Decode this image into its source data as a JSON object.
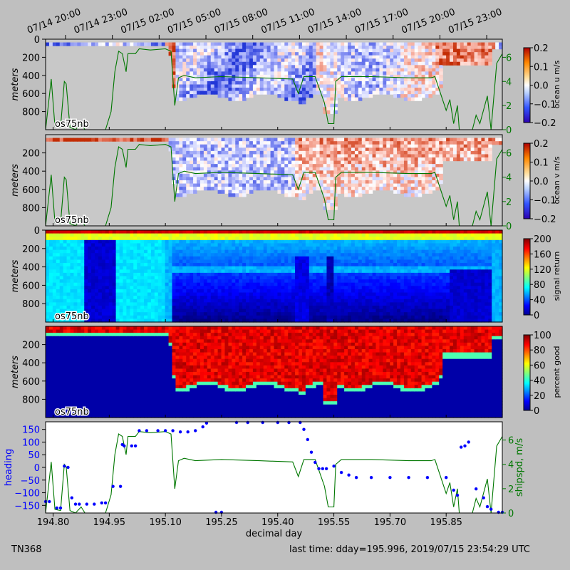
{
  "time_ticks": [
    "07/14 20:00",
    "07/14 23:00",
    "07/15 02:00",
    "07/15 05:00",
    "07/15 08:00",
    "07/15 11:00",
    "07/15 14:00",
    "07/15 17:00",
    "07/15 20:00",
    "07/15 23:00"
  ],
  "panel_tag": "os75nb",
  "footer": {
    "left": "TN368",
    "right": "last time: dday=195.996,  2019/07/15 23:54:29 UTC"
  },
  "colors": {
    "background": "#bfbfbf",
    "nodata": "#c8c8c8",
    "shipspd": "#007700",
    "heading": "#0000ff"
  },
  "chart_data": [
    {
      "type": "heatmap",
      "name": "ocean-u",
      "ylabel": "meters",
      "yticks": [
        0,
        200,
        400,
        600,
        800
      ],
      "ylim": [
        1000,
        0
      ],
      "colorbar": {
        "label": "ocean u m/s",
        "ticks": [
          "0.2",
          "0.1",
          "0.0",
          "−0.1",
          "−0.2"
        ],
        "range": [
          -0.2,
          0.2
        ],
        "cmap": "blue-white-red"
      },
      "right_axis": {
        "ticks": [
          "6",
          "4",
          "2",
          "0"
        ],
        "range": [
          0,
          7.5
        ]
      },
      "xlim": [
        194.78,
        196.0
      ]
    },
    {
      "type": "heatmap",
      "name": "ocean-v",
      "ylabel": "meters",
      "yticks": [
        200,
        400,
        600,
        800
      ],
      "ylim": [
        1000,
        0
      ],
      "colorbar": {
        "label": "ocean v m/s",
        "ticks": [
          "0.2",
          "0.1",
          "0.0",
          "−0.1",
          "−0.2"
        ],
        "range": [
          -0.2,
          0.2
        ],
        "cmap": "blue-white-red"
      },
      "right_axis": {
        "ticks": [
          "6",
          "4",
          "2",
          "0"
        ],
        "range": [
          0,
          7.5
        ]
      },
      "xlim": [
        194.78,
        196.0
      ]
    },
    {
      "type": "heatmap",
      "name": "signal-return",
      "ylabel": "meters",
      "yticks": [
        0,
        200,
        400,
        600,
        800
      ],
      "ylim": [
        1000,
        0
      ],
      "colorbar": {
        "label": "signal return",
        "ticks": [
          "200",
          "160",
          "120",
          "80",
          "40",
          "0"
        ],
        "range": [
          0,
          200
        ],
        "cmap": "jet"
      },
      "xlim": [
        194.78,
        196.0
      ]
    },
    {
      "type": "heatmap",
      "name": "percent-good",
      "ylabel": "meters",
      "yticks": [
        200,
        400,
        600,
        800
      ],
      "ylim": [
        1000,
        0
      ],
      "colorbar": {
        "label": "percent good",
        "ticks": [
          "100",
          "80",
          "60",
          "40",
          "20",
          "0"
        ],
        "range": [
          0,
          100
        ],
        "cmap": "jet"
      },
      "xlim": [
        194.78,
        196.0
      ]
    },
    {
      "type": "scatter",
      "name": "heading-shipspd",
      "xlabel": "decimal day",
      "xticks": [
        "194.80",
        "194.95",
        "195.10",
        "195.25",
        "195.40",
        "195.55",
        "195.70",
        "195.85"
      ],
      "xtick_values": [
        194.8,
        194.95,
        195.1,
        195.25,
        195.4,
        195.55,
        195.7,
        195.85
      ],
      "xlim": [
        194.78,
        196.0
      ],
      "left_axis": {
        "label": "heading",
        "ticks": [
          "150",
          "100",
          "50",
          "0",
          "−50",
          "−100",
          "−150"
        ],
        "range": [
          -180,
          180
        ]
      },
      "right_axis": {
        "label": "shipspd, m/s",
        "ticks": [
          "6",
          "4",
          "2",
          "0"
        ],
        "range": [
          0,
          7.5
        ]
      },
      "series": [
        {
          "kind": "points",
          "values_xy": [
            [
              194.78,
              -135
            ],
            [
              194.79,
              -135
            ],
            [
              194.81,
              -160
            ],
            [
              194.82,
              -160
            ],
            [
              194.83,
              5
            ],
            [
              194.84,
              0
            ],
            [
              194.85,
              -120
            ],
            [
              194.86,
              -145
            ],
            [
              194.87,
              -145
            ],
            [
              194.89,
              -145
            ],
            [
              194.91,
              -145
            ],
            [
              194.93,
              -140
            ],
            [
              194.94,
              -140
            ],
            [
              194.96,
              -75
            ],
            [
              194.98,
              -75
            ],
            [
              194.985,
              90
            ],
            [
              194.99,
              85
            ],
            [
              195.01,
              85
            ],
            [
              195.02,
              85
            ],
            [
              195.03,
              145
            ],
            [
              195.05,
              145
            ],
            [
              195.08,
              145
            ],
            [
              195.1,
              145
            ],
            [
              195.12,
              145
            ],
            [
              195.14,
              140
            ],
            [
              195.16,
              140
            ],
            [
              195.18,
              145
            ],
            [
              195.2,
              160
            ],
            [
              195.21,
              175
            ],
            [
              195.235,
              -185
            ],
            [
              195.25,
              -185
            ],
            [
              195.29,
              178
            ],
            [
              195.32,
              178
            ],
            [
              195.36,
              178
            ],
            [
              195.4,
              178
            ],
            [
              195.43,
              178
            ],
            [
              195.46,
              178
            ],
            [
              195.47,
              150
            ],
            [
              195.48,
              110
            ],
            [
              195.49,
              60
            ],
            [
              195.5,
              20
            ],
            [
              195.51,
              -5
            ],
            [
              195.52,
              -5
            ],
            [
              195.53,
              -5
            ],
            [
              195.55,
              5
            ],
            [
              195.57,
              -20
            ],
            [
              195.59,
              -30
            ],
            [
              195.61,
              -40
            ],
            [
              195.65,
              -40
            ],
            [
              195.7,
              -40
            ],
            [
              195.75,
              -40
            ],
            [
              195.8,
              -40
            ],
            [
              195.85,
              -40
            ],
            [
              195.87,
              -90
            ],
            [
              195.88,
              -110
            ],
            [
              195.89,
              80
            ],
            [
              195.9,
              85
            ],
            [
              195.91,
              100
            ],
            [
              195.93,
              -85
            ],
            [
              195.95,
              -120
            ],
            [
              195.96,
              -155
            ],
            [
              195.97,
              -165
            ],
            [
              195.99,
              -185
            ],
            [
              196.0,
              -185
            ]
          ]
        },
        {
          "kind": "line",
          "values_xy": [
            [
              194.78,
              0
            ],
            [
              194.795,
              4.2
            ],
            [
              194.805,
              0.3
            ],
            [
              194.82,
              0.2
            ],
            [
              194.83,
              4.0
            ],
            [
              194.835,
              3.8
            ],
            [
              194.845,
              0.2
            ],
            [
              194.86,
              0
            ],
            [
              194.875,
              0.5
            ],
            [
              194.885,
              0
            ],
            [
              194.92,
              0
            ],
            [
              194.94,
              0
            ],
            [
              194.955,
              1.5
            ],
            [
              194.965,
              4.8
            ],
            [
              194.975,
              6.5
            ],
            [
              194.985,
              6.3
            ],
            [
              194.995,
              4.8
            ],
            [
              195.0,
              6.3
            ],
            [
              195.02,
              6.3
            ],
            [
              195.03,
              6.7
            ],
            [
              195.06,
              6.6
            ],
            [
              195.1,
              6.7
            ],
            [
              195.115,
              6.5
            ],
            [
              195.125,
              2.0
            ],
            [
              195.135,
              4.3
            ],
            [
              195.15,
              4.5
            ],
            [
              195.18,
              4.3
            ],
            [
              195.25,
              4.4
            ],
            [
              195.35,
              4.3
            ],
            [
              195.44,
              4.2
            ],
            [
              195.455,
              3.0
            ],
            [
              195.47,
              4.4
            ],
            [
              195.48,
              4.4
            ],
            [
              195.5,
              4.4
            ],
            [
              195.525,
              2.2
            ],
            [
              195.535,
              0.5
            ],
            [
              195.55,
              0.5
            ],
            [
              195.555,
              4.0
            ],
            [
              195.57,
              4.4
            ],
            [
              195.65,
              4.4
            ],
            [
              195.75,
              4.3
            ],
            [
              195.81,
              4.3
            ],
            [
              195.82,
              4.4
            ],
            [
              195.835,
              3.0
            ],
            [
              195.85,
              1.6
            ],
            [
              195.86,
              2.5
            ],
            [
              195.87,
              0.5
            ],
            [
              195.88,
              2.0
            ],
            [
              195.885,
              0
            ],
            [
              195.92,
              0
            ],
            [
              195.93,
              1.2
            ],
            [
              195.94,
              0.5
            ],
            [
              195.96,
              2.8
            ],
            [
              195.97,
              0
            ],
            [
              195.985,
              5.5
            ],
            [
              196.0,
              6.3
            ]
          ]
        }
      ]
    }
  ]
}
